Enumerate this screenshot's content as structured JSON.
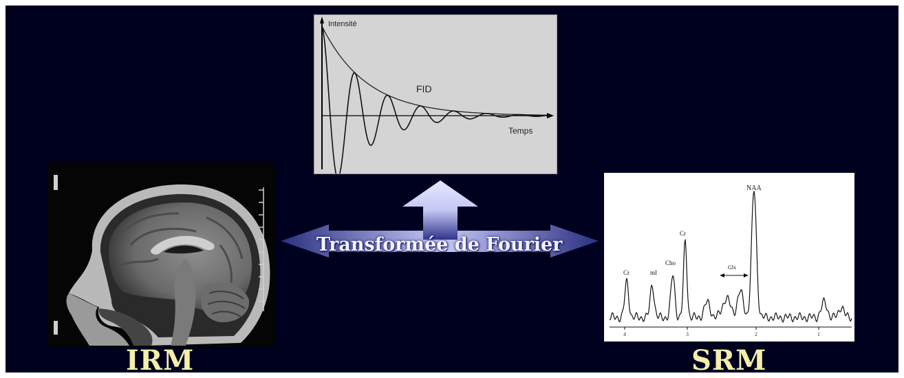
{
  "labels": {
    "irm": "IRM",
    "srm": "SRM",
    "transform": "Transformée de Fourier"
  },
  "fid_chart": {
    "y_axis_label": "Intensité",
    "x_axis_label": "Temps",
    "curve_label": "FID"
  },
  "spectrum_chart": {
    "peaks": [
      {
        "label": "Cr"
      },
      {
        "label": "mI"
      },
      {
        "label": "Cho"
      },
      {
        "label": "Cr"
      },
      {
        "label": "Glx"
      },
      {
        "label": "NAA"
      }
    ],
    "x_ticks": [
      "4",
      "3",
      "2",
      "1"
    ]
  },
  "colors": {
    "background": "#00001f",
    "title_yellow": "#f3eeaa",
    "arrow_light": "#d8dcff",
    "arrow_dark": "#2a2f80"
  },
  "icons": [
    "arrow-left-icon",
    "arrow-right-icon",
    "arrow-up-icon"
  ]
}
